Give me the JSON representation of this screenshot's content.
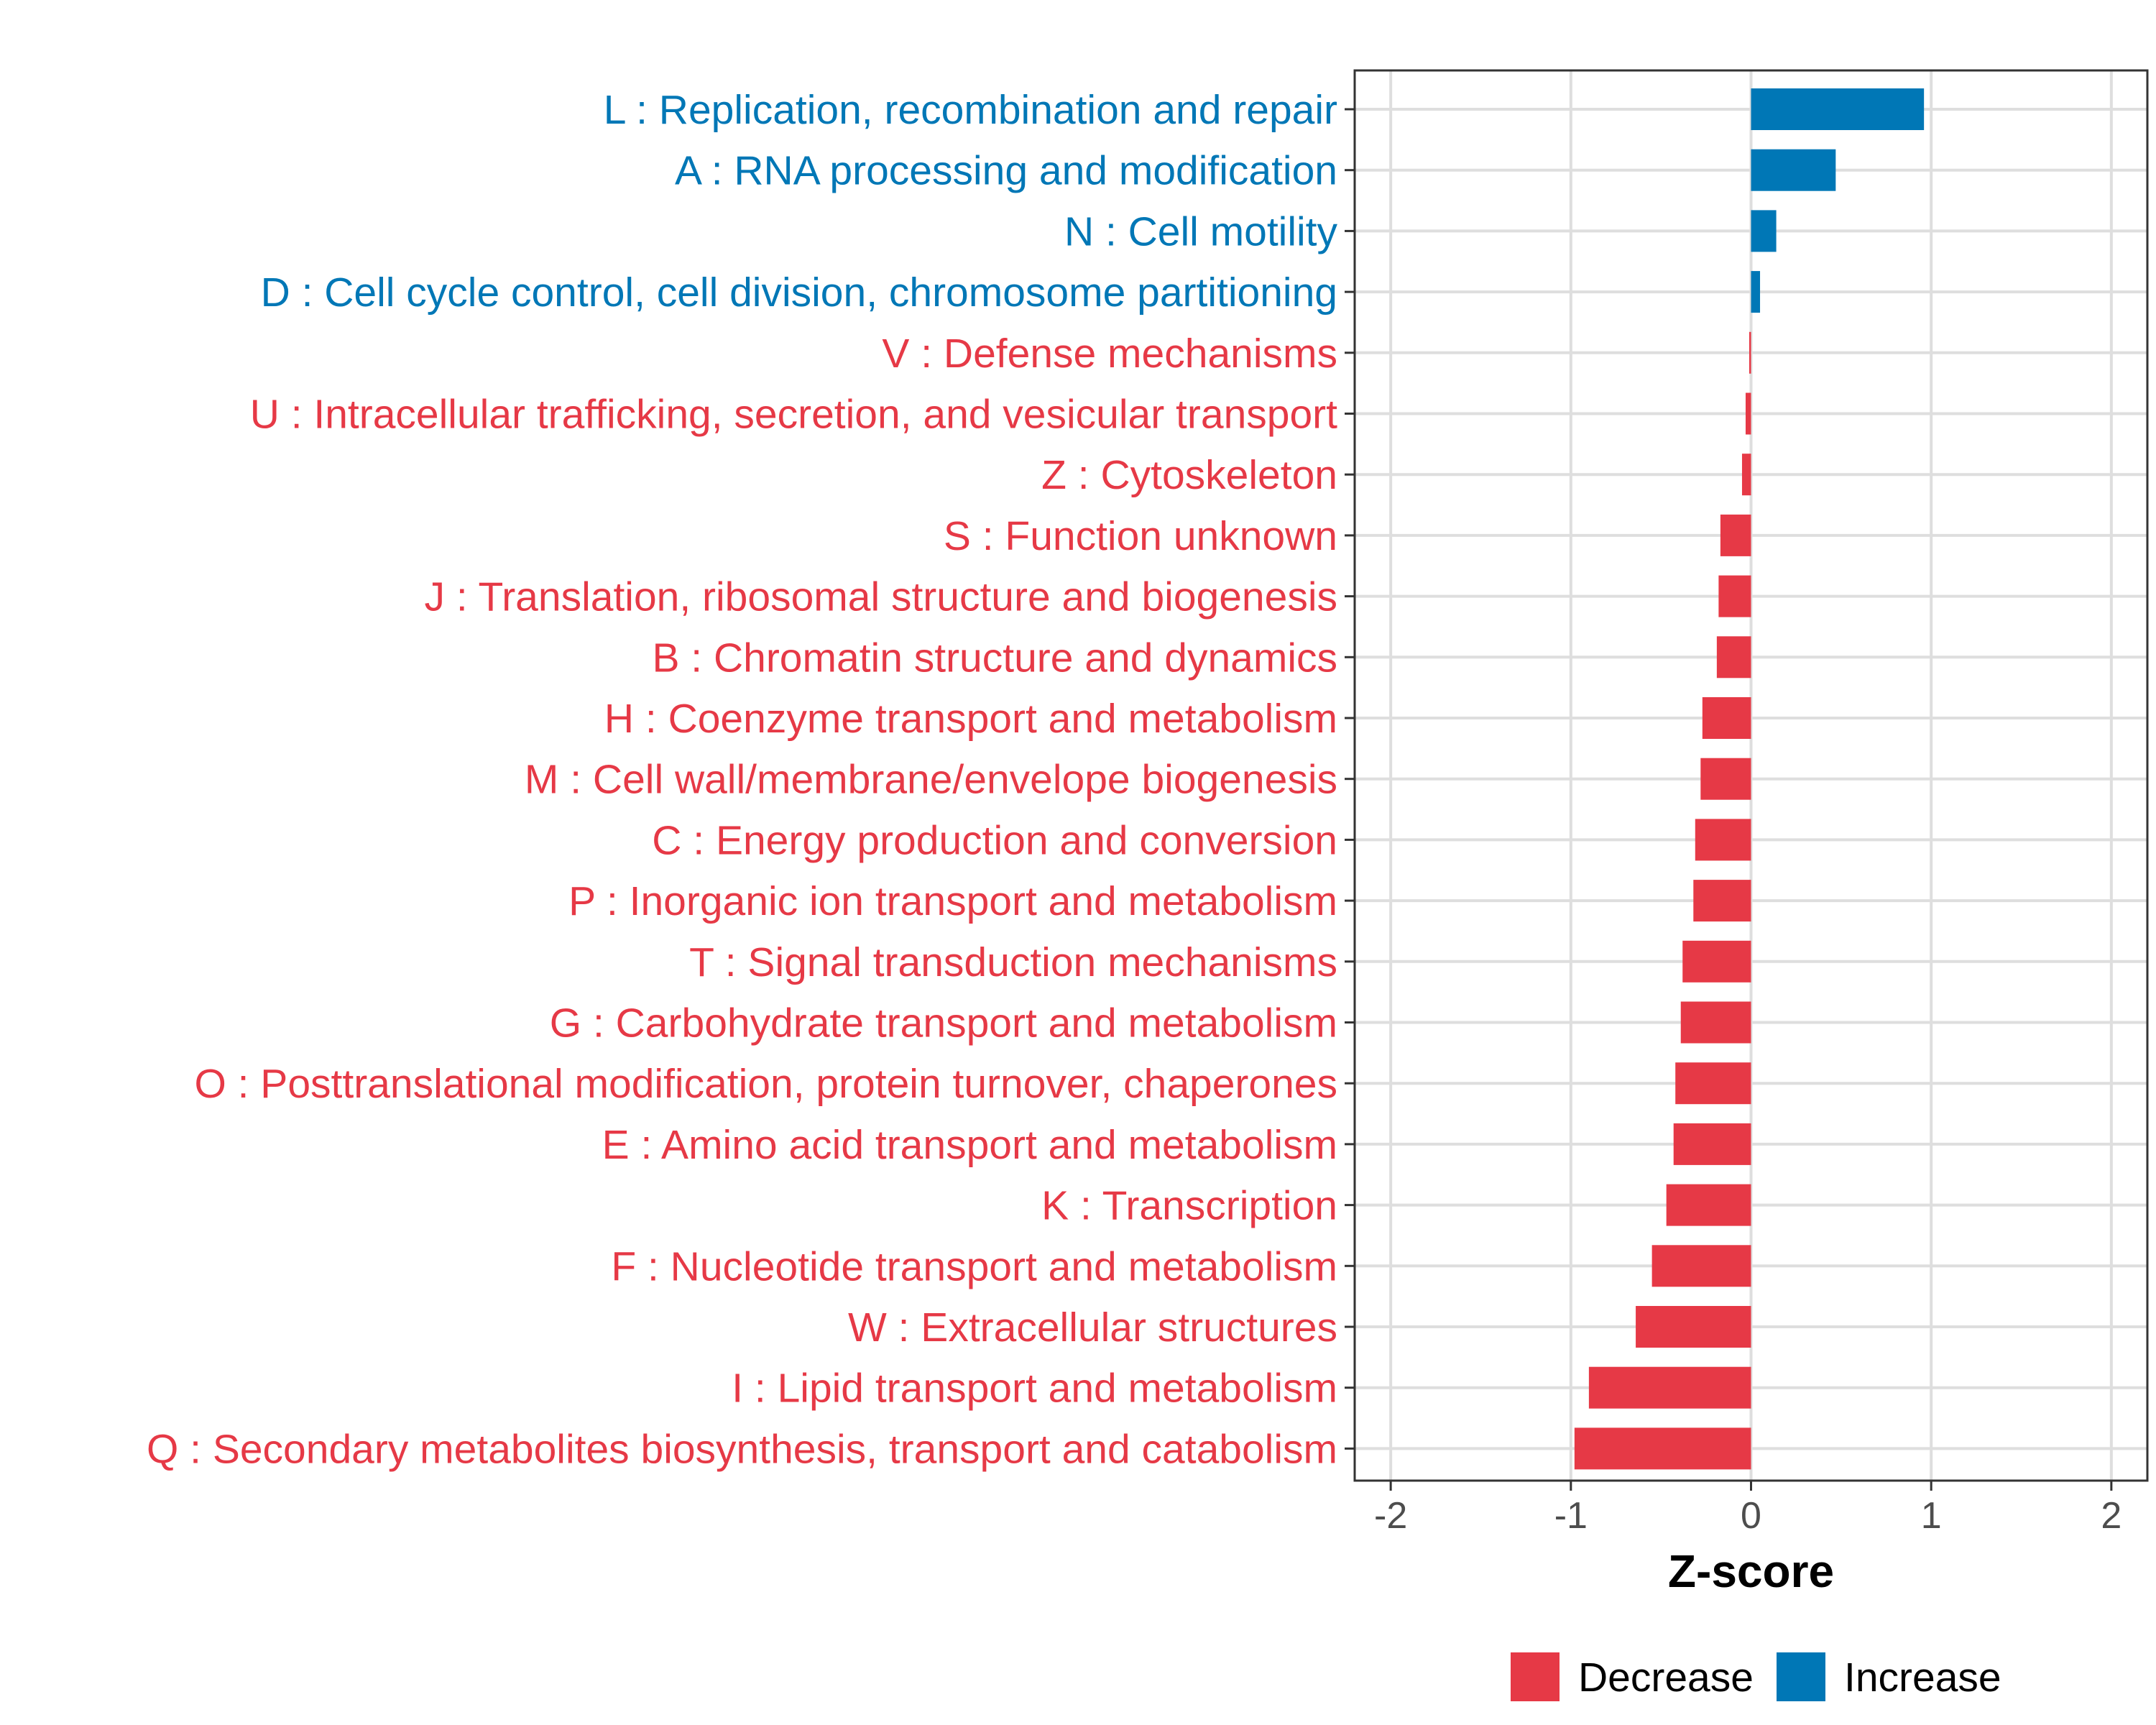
{
  "chart_data": {
    "type": "bar",
    "orientation": "horizontal",
    "title": "",
    "xlabel": "Z-score",
    "ylabel": "",
    "xlim": [
      -2.2,
      2.2
    ],
    "x_ticks": [
      -2,
      -1,
      0,
      1,
      2
    ],
    "x_tick_labels": [
      "-2",
      "-1",
      "0",
      "1",
      "2"
    ],
    "grid": true,
    "colors": {
      "Decrease": "#E63946",
      "Increase": "#0077B6"
    },
    "legend": {
      "position": "bottom",
      "entries": [
        {
          "name": "Decrease",
          "color": "#E63946"
        },
        {
          "name": "Increase",
          "color": "#0077B6"
        }
      ]
    },
    "categories": [
      {
        "label": "L : Replication, recombination and repair",
        "value": 0.96,
        "group": "Increase"
      },
      {
        "label": "A : RNA processing and modification",
        "value": 0.47,
        "group": "Increase"
      },
      {
        "label": "N : Cell motility",
        "value": 0.14,
        "group": "Increase"
      },
      {
        "label": "D : Cell cycle control, cell division, chromosome partitioning",
        "value": 0.05,
        "group": "Increase"
      },
      {
        "label": "V : Defense mechanisms",
        "value": -0.01,
        "group": "Decrease"
      },
      {
        "label": "U : Intracellular trafficking, secretion, and vesicular transport",
        "value": -0.03,
        "group": "Decrease"
      },
      {
        "label": "Z : Cytoskeleton",
        "value": -0.05,
        "group": "Decrease"
      },
      {
        "label": "S : Function unknown",
        "value": -0.17,
        "group": "Decrease"
      },
      {
        "label": "J : Translation, ribosomal structure and biogenesis",
        "value": -0.18,
        "group": "Decrease"
      },
      {
        "label": "B : Chromatin structure and dynamics",
        "value": -0.19,
        "group": "Decrease"
      },
      {
        "label": "H : Coenzyme transport and metabolism",
        "value": -0.27,
        "group": "Decrease"
      },
      {
        "label": "M : Cell wall/membrane/envelope biogenesis",
        "value": -0.28,
        "group": "Decrease"
      },
      {
        "label": "C : Energy production and conversion",
        "value": -0.31,
        "group": "Decrease"
      },
      {
        "label": "P : Inorganic ion transport and metabolism",
        "value": -0.32,
        "group": "Decrease"
      },
      {
        "label": "T : Signal transduction mechanisms",
        "value": -0.38,
        "group": "Decrease"
      },
      {
        "label": "G : Carbohydrate transport and metabolism",
        "value": -0.39,
        "group": "Decrease"
      },
      {
        "label": "O : Posttranslational modification, protein turnover, chaperones",
        "value": -0.42,
        "group": "Decrease"
      },
      {
        "label": "E : Amino acid transport and metabolism",
        "value": -0.43,
        "group": "Decrease"
      },
      {
        "label": "K : Transcription",
        "value": -0.47,
        "group": "Decrease"
      },
      {
        "label": "F : Nucleotide transport and metabolism",
        "value": -0.55,
        "group": "Decrease"
      },
      {
        "label": "W : Extracellular structures",
        "value": -0.64,
        "group": "Decrease"
      },
      {
        "label": "I : Lipid transport and metabolism",
        "value": -0.9,
        "group": "Decrease"
      },
      {
        "label": "Q : Secondary metabolites biosynthesis, transport and catabolism",
        "value": -0.98,
        "group": "Decrease"
      }
    ]
  }
}
